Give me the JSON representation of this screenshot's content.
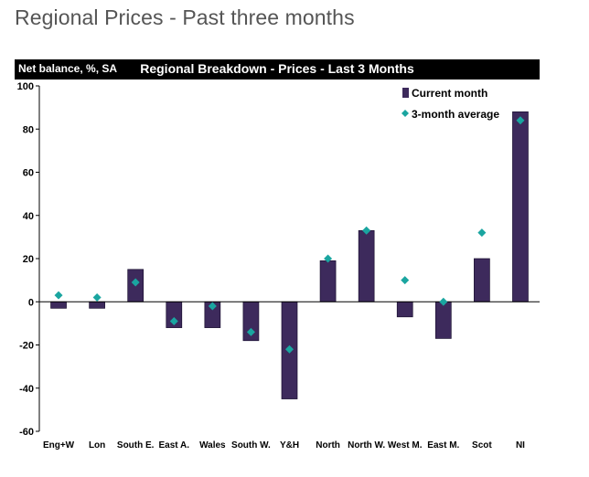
{
  "page": {
    "title": "Regional Prices - Past three months"
  },
  "chart_data": {
    "type": "bar",
    "title": "Regional Breakdown - Prices - Last 3 Months",
    "ylabel": "Net balance, %, SA",
    "ylim": [
      -60,
      100
    ],
    "yticks": [
      100,
      80,
      60,
      40,
      20,
      0,
      -20,
      -40,
      -60
    ],
    "categories": [
      "Eng+W",
      "Lon",
      "South E.",
      "East A.",
      "Wales",
      "South W.",
      "Y&H",
      "North",
      "North W.",
      "West M.",
      "East M.",
      "Scot",
      "NI"
    ],
    "series": [
      {
        "name": "Current month",
        "kind": "bar",
        "color": "#3d2a5c",
        "values": [
          -3,
          -3,
          15,
          -12,
          -12,
          -18,
          -45,
          19,
          33,
          -7,
          -17,
          20,
          88
        ]
      },
      {
        "name": "3-month average",
        "kind": "marker",
        "marker": "diamond",
        "color": "#1aa5a0",
        "values": [
          3,
          2,
          9,
          -9,
          -2,
          -14,
          -22,
          20,
          33,
          10,
          0,
          32,
          84
        ]
      }
    ],
    "legend": "top-right",
    "grid": false
  }
}
